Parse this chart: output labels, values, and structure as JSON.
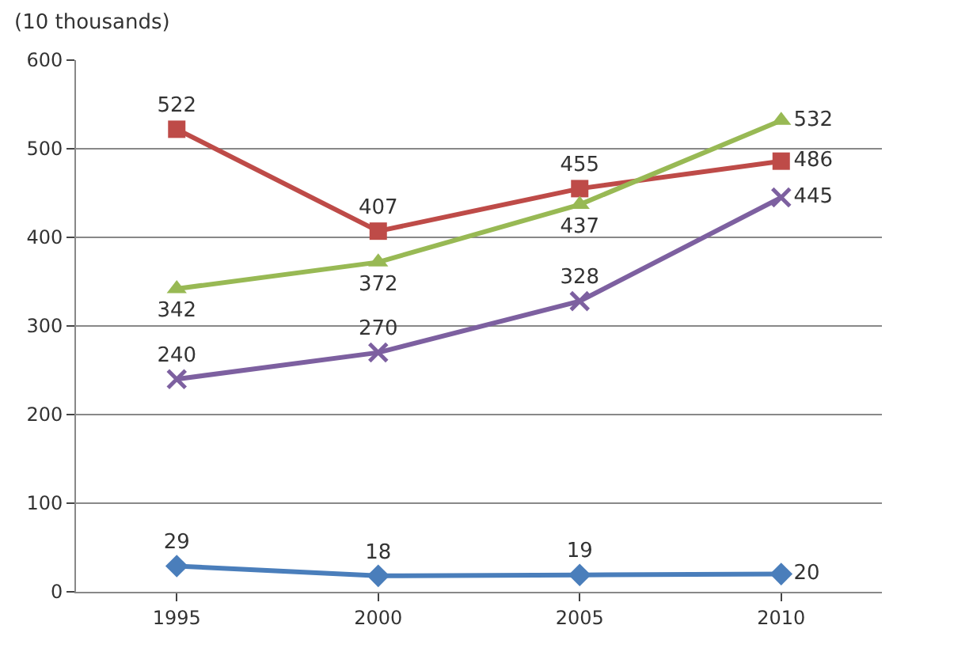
{
  "chart_data": {
    "type": "line",
    "ylabel": "(10 thousands)",
    "categories": [
      "1995",
      "2000",
      "2005",
      "2010"
    ],
    "series": [
      {
        "color": "#4a7ebb",
        "marker": "diamond",
        "values": [
          29,
          18,
          19,
          20
        ]
      },
      {
        "color": "#be4b48",
        "marker": "square",
        "values": [
          522,
          407,
          455,
          486
        ]
      },
      {
        "color": "#98b954",
        "marker": "triangle",
        "values": [
          342,
          372,
          437,
          532
        ]
      },
      {
        "color": "#7d60a0",
        "marker": "cross",
        "values": [
          240,
          270,
          328,
          445
        ]
      }
    ],
    "ylim": [
      0,
      600
    ],
    "yticks": [
      0,
      100,
      200,
      300,
      400,
      500,
      600
    ],
    "grid": "y",
    "data_labels": true,
    "legend": false,
    "line_style": "solid"
  }
}
